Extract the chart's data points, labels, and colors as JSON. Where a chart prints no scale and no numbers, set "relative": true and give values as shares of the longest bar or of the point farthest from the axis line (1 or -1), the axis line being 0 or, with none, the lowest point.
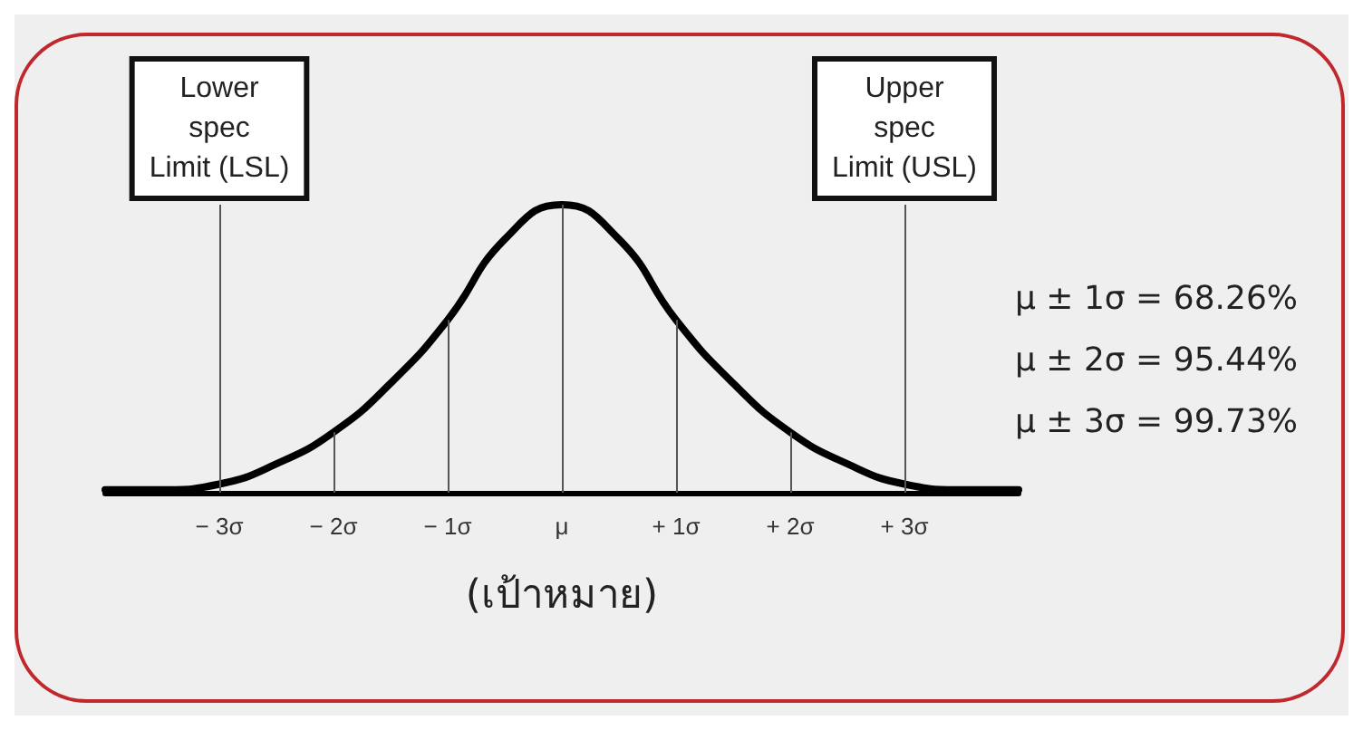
{
  "chart_data": {
    "type": "line",
    "relative": true,
    "xlabel": "(เป้าหมาย)",
    "xlim": [
      -4,
      4
    ],
    "xticks": [
      {
        "value": -3,
        "label": "− 3σ"
      },
      {
        "value": -2,
        "label": "− 2σ"
      },
      {
        "value": -1,
        "label": "− 1σ"
      },
      {
        "value": 0,
        "label": "μ"
      },
      {
        "value": 1,
        "label": "+ 1σ"
      },
      {
        "value": 2,
        "label": "+ 2σ"
      },
      {
        "value": 3,
        "label": "+ 3σ"
      }
    ],
    "x": [
      -4,
      -3.5,
      -3,
      -2.5,
      -2,
      -1.5,
      -1,
      -0.5,
      0,
      0.5,
      1,
      1.5,
      2,
      2.5,
      3,
      3.5,
      4
    ],
    "series": [
      {
        "color": "#000000",
        "values": [
          0.01,
          0.01,
          0.03,
          0.1,
          0.21,
          0.38,
          0.6,
          0.88,
          1,
          0.88,
          0.6,
          0.38,
          0.21,
          0.1,
          0.03,
          0.01,
          0.01
        ]
      }
    ],
    "marker": "none",
    "line_style": "solid",
    "grid": false,
    "ref_lines": [
      {
        "axis": "x",
        "value": -3,
        "label": "Lower\nspec\nLimit (LSL)"
      },
      {
        "axis": "x",
        "value": -2
      },
      {
        "axis": "x",
        "value": -1
      },
      {
        "axis": "x",
        "value": 0
      },
      {
        "axis": "x",
        "value": 1
      },
      {
        "axis": "x",
        "value": 2
      },
      {
        "axis": "x",
        "value": 3,
        "label": "Upper\nspec\nLimit (USL)"
      }
    ],
    "annotations": [
      "μ ± 1σ = 68.26%",
      "μ ± 2σ = 95.44%",
      "μ ± 3σ = 99.73%"
    ]
  }
}
